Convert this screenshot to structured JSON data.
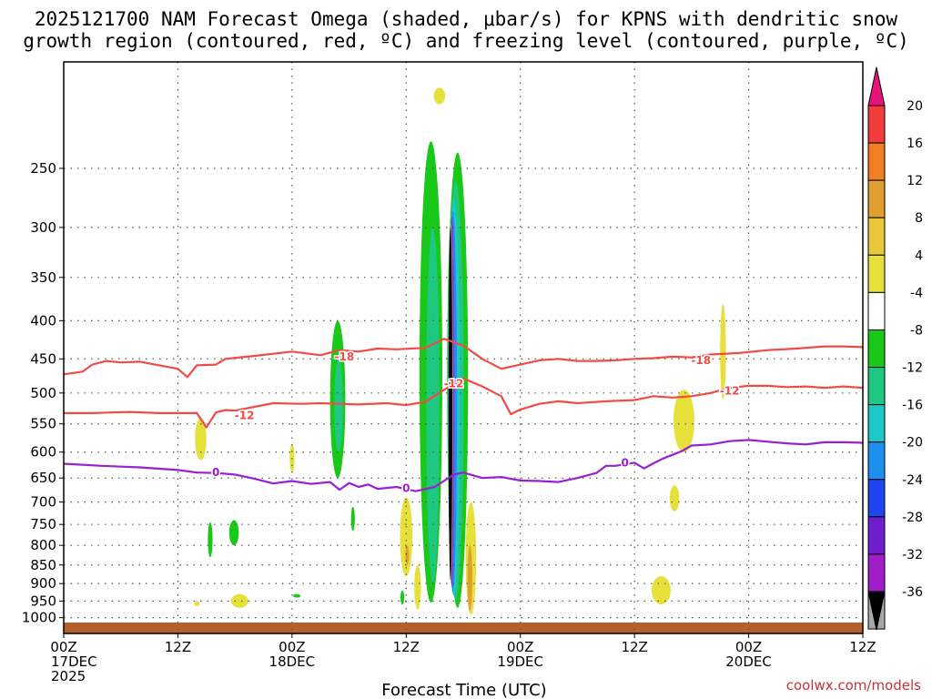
{
  "chart_data": {
    "type": "time-height contour",
    "title_line1": "2025121700 NAM Forecast Omega (shaded, μbar/s) for KPNS with dendritic snow",
    "title_line2": "growth region (contoured, red, ºC) and freezing level (contoured, purple, ºC)",
    "xlabel": "Forecast Time (UTC)",
    "credit": "coolwx.com/models",
    "xlim_hours": [
      0,
      84
    ],
    "ylim_mb": [
      1050,
      180
    ],
    "x_ticks": [
      {
        "h": 0,
        "line1": "00Z",
        "line2": "17DEC",
        "line3": "2025"
      },
      {
        "h": 12,
        "line1": "12Z",
        "line2": "",
        "line3": ""
      },
      {
        "h": 24,
        "line1": "00Z",
        "line2": "18DEC",
        "line3": ""
      },
      {
        "h": 36,
        "line1": "12Z",
        "line2": "",
        "line3": ""
      },
      {
        "h": 48,
        "line1": "00Z",
        "line2": "19DEC",
        "line3": ""
      },
      {
        "h": 60,
        "line1": "12Z",
        "line2": "",
        "line3": ""
      },
      {
        "h": 72,
        "line1": "00Z",
        "line2": "20DEC",
        "line3": ""
      },
      {
        "h": 84,
        "line1": "12Z",
        "line2": "",
        "line3": ""
      }
    ],
    "y_ticks": [
      {
        "p": 250,
        "label": "250"
      },
      {
        "p": 300,
        "label": "300"
      },
      {
        "p": 350,
        "label": "350"
      },
      {
        "p": 400,
        "label": "400"
      },
      {
        "p": 450,
        "label": "450"
      },
      {
        "p": 500,
        "label": "500"
      },
      {
        "p": 550,
        "label": "550"
      },
      {
        "p": 600,
        "label": "600"
      },
      {
        "p": 650,
        "label": "650"
      },
      {
        "p": 700,
        "label": "700"
      },
      {
        "p": 750,
        "label": "750"
      },
      {
        "p": 800,
        "label": "800"
      },
      {
        "p": 850,
        "label": "850"
      },
      {
        "p": 900,
        "label": "900"
      },
      {
        "p": 950,
        "label": "950"
      },
      {
        "p": 1000,
        "label": "1000"
      }
    ],
    "colorbar": {
      "labels": [
        "20",
        "16",
        "12",
        "8",
        "4",
        "-4",
        "-8",
        "-12",
        "-16",
        "-20",
        "-24",
        "-28",
        "-32",
        "-36"
      ],
      "colors": [
        "#f33c3c",
        "#f07f22",
        "#e0a030",
        "#e8c83a",
        "#e6e03a",
        "#ffffff",
        "#19c819",
        "#1ec880",
        "#1ec8c8",
        "#1e90f0",
        "#1e46f0",
        "#6e1ecd",
        "#a01ec8",
        "#a8a8a8"
      ],
      "top_arrow": "#e6147a",
      "bottom_arrow": "#000000"
    },
    "series": [
      {
        "name": "-18 C isotherm",
        "color": "#f24a45",
        "label": "-18",
        "label_positions": [
          {
            "h": 29.5,
            "p": 447
          },
          {
            "h": 67,
            "p": 452
          }
        ],
        "points": [
          [
            0,
            472
          ],
          [
            2,
            468
          ],
          [
            3,
            458
          ],
          [
            4.5,
            453
          ],
          [
            6,
            455
          ],
          [
            8,
            454
          ],
          [
            10,
            459
          ],
          [
            12,
            464
          ],
          [
            13,
            476
          ],
          [
            14,
            459
          ],
          [
            16,
            458
          ],
          [
            17,
            450
          ],
          [
            20,
            446
          ],
          [
            24,
            440
          ],
          [
            27,
            445
          ],
          [
            29,
            438
          ],
          [
            31,
            440
          ],
          [
            33,
            436
          ],
          [
            35,
            437
          ],
          [
            38,
            435
          ],
          [
            40,
            423
          ],
          [
            42,
            432
          ],
          [
            44,
            450
          ],
          [
            46,
            464
          ],
          [
            48,
            458
          ],
          [
            50,
            452
          ],
          [
            52,
            450
          ],
          [
            54,
            453
          ],
          [
            56,
            453
          ],
          [
            58,
            452
          ],
          [
            60,
            450
          ],
          [
            62,
            449
          ],
          [
            64,
            447
          ],
          [
            66,
            448
          ],
          [
            68,
            444
          ],
          [
            71,
            442
          ],
          [
            74,
            438
          ],
          [
            77,
            436
          ],
          [
            80,
            433
          ],
          [
            82,
            433
          ],
          [
            84,
            434
          ]
        ]
      },
      {
        "name": "-12 C isotherm",
        "color": "#f24a45",
        "label": "-12",
        "label_positions": [
          {
            "h": 19,
            "p": 536
          },
          {
            "h": 41,
            "p": 486
          },
          {
            "h": 70,
            "p": 497
          }
        ],
        "points": [
          [
            0,
            532
          ],
          [
            3,
            532
          ],
          [
            5,
            531
          ],
          [
            7,
            530
          ],
          [
            10,
            532
          ],
          [
            13,
            532
          ],
          [
            14,
            532
          ],
          [
            15,
            556
          ],
          [
            16,
            531
          ],
          [
            17,
            527
          ],
          [
            18,
            528
          ],
          [
            22,
            516
          ],
          [
            25,
            517
          ],
          [
            27,
            516
          ],
          [
            29,
            517
          ],
          [
            31,
            518
          ],
          [
            34,
            516
          ],
          [
            36,
            519
          ],
          [
            38,
            514
          ],
          [
            40,
            495
          ],
          [
            42,
            478
          ],
          [
            44,
            490
          ],
          [
            46,
            505
          ],
          [
            47,
            534
          ],
          [
            48,
            526
          ],
          [
            50,
            517
          ],
          [
            52,
            513
          ],
          [
            54,
            516
          ],
          [
            57,
            513
          ],
          [
            60,
            511
          ],
          [
            62,
            505
          ],
          [
            64,
            507
          ],
          [
            66,
            505
          ],
          [
            68,
            500
          ],
          [
            70,
            492
          ],
          [
            72,
            489
          ],
          [
            74,
            489
          ],
          [
            76,
            491
          ],
          [
            78,
            490
          ],
          [
            80,
            492
          ],
          [
            82,
            490
          ],
          [
            84,
            492
          ]
        ]
      },
      {
        "name": "0 C freezing level",
        "color": "#9a1fd0",
        "label": "0",
        "label_positions": [
          {
            "h": 16,
            "p": 639
          },
          {
            "h": 36,
            "p": 671
          },
          {
            "h": 59,
            "p": 620
          }
        ],
        "points": [
          [
            0,
            622
          ],
          [
            4,
            626
          ],
          [
            8,
            629
          ],
          [
            12,
            634
          ],
          [
            14,
            639
          ],
          [
            16,
            640
          ],
          [
            18,
            643
          ],
          [
            20,
            651
          ],
          [
            22,
            661
          ],
          [
            24,
            656
          ],
          [
            26,
            662
          ],
          [
            28,
            658
          ],
          [
            29,
            674
          ],
          [
            30,
            660
          ],
          [
            31,
            668
          ],
          [
            32,
            663
          ],
          [
            33,
            672
          ],
          [
            35,
            668
          ],
          [
            37,
            677
          ],
          [
            39,
            668
          ],
          [
            41,
            643
          ],
          [
            42,
            639
          ],
          [
            44,
            650
          ],
          [
            46,
            648
          ],
          [
            48,
            655
          ],
          [
            50,
            656
          ],
          [
            52,
            658
          ],
          [
            54,
            650
          ],
          [
            56,
            640
          ],
          [
            57,
            626
          ],
          [
            58,
            626
          ],
          [
            60,
            620
          ],
          [
            61,
            631
          ],
          [
            62,
            621
          ],
          [
            63,
            612
          ],
          [
            64,
            605
          ],
          [
            65,
            598
          ],
          [
            66,
            588
          ],
          [
            68,
            586
          ],
          [
            70,
            580
          ],
          [
            72,
            578
          ],
          [
            74,
            581
          ],
          [
            76,
            584
          ],
          [
            78,
            586
          ],
          [
            80,
            582
          ],
          [
            82,
            582
          ],
          [
            84,
            583
          ]
        ]
      }
    ],
    "shaded_regions": [
      {
        "level": "4 to 8",
        "color": "#e6e03a",
        "hx": 39.5,
        "p_top": 195,
        "p_bot": 205,
        "w": 0.6
      },
      {
        "level": "-4 to -8",
        "color": "#19c819",
        "hx": 38.6,
        "p_top": 230,
        "p_bot": 955,
        "w": 1.2
      },
      {
        "level": "-4 to -8",
        "color": "#19c819",
        "hx": 41.4,
        "p_top": 238,
        "p_bot": 970,
        "w": 1.1
      },
      {
        "level": "-8 to -12",
        "color": "#1ec880",
        "hx": 41.2,
        "p_top": 260,
        "p_bot": 945,
        "w": 0.85
      },
      {
        "level": "-12 to -16",
        "color": "#1ec8c8",
        "hx": 41.0,
        "p_top": 275,
        "p_bot": 935,
        "w": 0.65
      },
      {
        "level": "-8 to -12",
        "color": "#1ec880",
        "hx": 38.8,
        "p_top": 300,
        "p_bot": 900,
        "w": 0.7
      },
      {
        "level": "-16 to -20",
        "color": "#1e90f0",
        "hx": 40.9,
        "p_top": 285,
        "p_bot": 925,
        "w": 0.45
      },
      {
        "level": "-28 to -32",
        "color": "#a01ec8",
        "hx": 40.8,
        "p_top": 290,
        "p_bot": 910,
        "w": 0.25
      },
      {
        "level": "-32 to -36",
        "color": "#a8a8a8",
        "hx": 40.7,
        "p_top": 296,
        "p_bot": 900,
        "w": 0.22
      },
      {
        "level": "< -36",
        "color": "#000000",
        "hx": 40.65,
        "p_top": 300,
        "p_bot": 890,
        "w": 0.2
      },
      {
        "level": "-4 to -8",
        "color": "#19c819",
        "hx": 28.8,
        "p_top": 400,
        "p_bot": 650,
        "w": 0.8
      },
      {
        "level": "-8 to -12",
        "color": "#1ec880",
        "hx": 28.9,
        "p_top": 450,
        "p_bot": 600,
        "w": 0.45
      },
      {
        "level": "4 to 8",
        "color": "#e6e03a",
        "hx": 14.4,
        "p_top": 540,
        "p_bot": 615,
        "w": 0.6
      },
      {
        "level": "4 to 8",
        "color": "#e6e03a",
        "hx": 65.2,
        "p_top": 495,
        "p_bot": 600,
        "w": 1.1
      },
      {
        "level": "4 to 8",
        "color": "#e6e03a",
        "hx": 69.3,
        "p_top": 380,
        "p_bot": 510,
        "w": 0.3
      },
      {
        "level": "4 to 8",
        "color": "#e6e03a",
        "hx": 64.2,
        "p_top": 665,
        "p_bot": 720,
        "w": 0.5
      },
      {
        "level": "4 to 8",
        "color": "#e6e03a",
        "hx": 62.8,
        "p_top": 880,
        "p_bot": 960,
        "w": 1.0
      },
      {
        "level": "4 to 8",
        "color": "#e6e03a",
        "hx": 24.0,
        "p_top": 585,
        "p_bot": 640,
        "w": 0.25
      },
      {
        "level": "-4 to -8",
        "color": "#19c819",
        "hx": 17.9,
        "p_top": 740,
        "p_bot": 800,
        "w": 0.5
      },
      {
        "level": "-4 to -8",
        "color": "#19c819",
        "hx": 15.4,
        "p_top": 745,
        "p_bot": 830,
        "w": 0.25
      },
      {
        "level": "-4 to -8",
        "color": "#19c819",
        "hx": 30.4,
        "p_top": 710,
        "p_bot": 765,
        "w": 0.2
      },
      {
        "level": "-4 to -8",
        "color": "#19c819",
        "hx": 24.5,
        "p_top": 930,
        "p_bot": 940,
        "w": 0.4
      },
      {
        "level": "4 to 8",
        "color": "#e6e03a",
        "hx": 18.5,
        "p_top": 930,
        "p_bot": 970,
        "w": 0.9
      },
      {
        "level": "4 to 8",
        "color": "#e6e03a",
        "hx": 14.0,
        "p_top": 950,
        "p_bot": 965,
        "w": 0.3
      },
      {
        "level": "4 to 8",
        "color": "#e6e03a",
        "hx": 36.0,
        "p_top": 690,
        "p_bot": 880,
        "w": 0.65
      },
      {
        "level": "8 to 12",
        "color": "#e0a030",
        "hx": 36.1,
        "p_top": 800,
        "p_bot": 850,
        "w": 0.2
      },
      {
        "level": "4 to 8",
        "color": "#e6e03a",
        "hx": 42.8,
        "p_top": 700,
        "p_bot": 990,
        "w": 0.55
      },
      {
        "level": "8 to 12",
        "color": "#e0a030",
        "hx": 42.7,
        "p_top": 800,
        "p_bot": 980,
        "w": 0.25
      },
      {
        "level": "4 to 8",
        "color": "#e6e03a",
        "hx": 37.2,
        "p_top": 850,
        "p_bot": 975,
        "w": 0.35
      },
      {
        "level": "-4 to -8",
        "color": "#19c819",
        "hx": 35.6,
        "p_top": 920,
        "p_bot": 960,
        "w": 0.2
      }
    ],
    "ground": {
      "color": "#b4602d",
      "p_top": 1015
    }
  }
}
